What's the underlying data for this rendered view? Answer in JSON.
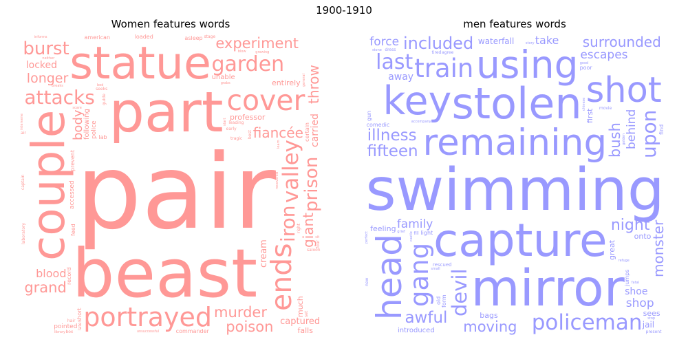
{
  "figure": {
    "suptitle": "1900-1910"
  },
  "chart_data": [
    {
      "type": "wordcloud",
      "title": "Women features words",
      "color": "#ff9896",
      "words": [
        {
          "text": "pair",
          "weight": 100
        },
        {
          "text": "part",
          "weight": 95
        },
        {
          "text": "beast",
          "weight": 60
        },
        {
          "text": "statue",
          "weight": 52
        },
        {
          "text": "couple",
          "weight": 38
        },
        {
          "text": "cover",
          "weight": 30
        },
        {
          "text": "portrayed",
          "weight": 28
        },
        {
          "text": "attacks",
          "weight": 27
        },
        {
          "text": "valley",
          "weight": 22
        },
        {
          "text": "ends",
          "weight": 22
        },
        {
          "text": "garden",
          "weight": 15
        },
        {
          "text": "experiment",
          "weight": 14
        },
        {
          "text": "iron",
          "weight": 14
        },
        {
          "text": "murder",
          "weight": 14
        },
        {
          "text": "poison",
          "weight": 14
        },
        {
          "text": "grand",
          "weight": 14
        },
        {
          "text": "prison",
          "weight": 13
        },
        {
          "text": "burst",
          "weight": 13
        },
        {
          "text": "giant",
          "weight": 13
        },
        {
          "text": "fiancée",
          "weight": 13
        },
        {
          "text": "throw",
          "weight": 13
        },
        {
          "text": "longer",
          "weight": 12
        },
        {
          "text": "locked",
          "weight": 12
        },
        {
          "text": "carried",
          "weight": 12
        },
        {
          "text": "following",
          "weight": 11
        },
        {
          "text": "captured",
          "weight": 11
        },
        {
          "text": "unable",
          "weight": 11
        },
        {
          "text": "cream",
          "weight": 11
        },
        {
          "text": "blood",
          "weight": 10
        },
        {
          "text": "police",
          "weight": 10
        },
        {
          "text": "accessed",
          "weight": 10
        },
        {
          "text": "pointed",
          "weight": 10
        },
        {
          "text": "falls",
          "weight": 9
        },
        {
          "text": "body",
          "weight": 8
        },
        {
          "text": "short",
          "weight": 8
        },
        {
          "text": "much",
          "weight": 8
        },
        {
          "text": "prevent",
          "weight": 8
        },
        {
          "text": "entirely",
          "weight": 8
        },
        {
          "text": "guide",
          "weight": 8
        },
        {
          "text": "seeks",
          "weight": 8
        },
        {
          "text": "leading",
          "weight": 8
        },
        {
          "text": "professor",
          "weight": 8
        },
        {
          "text": "american",
          "weight": 8
        },
        {
          "text": "captain",
          "weight": 8
        },
        {
          "text": "commander",
          "weight": 8
        },
        {
          "text": "asleep",
          "weight": 8
        },
        {
          "text": "feed",
          "weight": 8
        },
        {
          "text": "masked",
          "weight": 8
        },
        {
          "text": "loaded",
          "weight": 8
        },
        {
          "text": "late",
          "weight": 8
        },
        {
          "text": "early",
          "weight": 8
        },
        {
          "text": "growing",
          "weight": 8
        },
        {
          "text": "recovered",
          "weight": 8
        },
        {
          "text": "unsuccessful",
          "weight": 8
        },
        {
          "text": "four",
          "weight": 8
        },
        {
          "text": "certain",
          "weight": 8
        },
        {
          "text": "tragic",
          "weight": 8
        },
        {
          "text": "informs",
          "weight": 8
        },
        {
          "text": "grabs",
          "weight": 8
        },
        {
          "text": "breaks",
          "weight": 8
        },
        {
          "text": "student",
          "weight": 8
        },
        {
          "text": "vanished",
          "weight": 8
        },
        {
          "text": "convinced",
          "weight": 8
        },
        {
          "text": "intervene",
          "weight": 8
        },
        {
          "text": "coming",
          "weight": 8
        },
        {
          "text": "laboratory",
          "weight": 8
        },
        {
          "text": "desperate",
          "weight": 8
        },
        {
          "text": "difficult",
          "weight": 8
        },
        {
          "text": "higher",
          "weight": 8
        },
        {
          "text": "lab",
          "weight": 8
        },
        {
          "text": "box",
          "weight": 8
        },
        {
          "text": "christmas",
          "weight": 8
        },
        {
          "text": "record",
          "weight": 8
        },
        {
          "text": "thrown",
          "weight": 8
        },
        {
          "text": "stage",
          "weight": 8
        },
        {
          "text": "right",
          "weight": 8
        },
        {
          "text": "towards",
          "weight": 8
        },
        {
          "text": "bed",
          "weight": 8
        },
        {
          "text": "surrender",
          "weight": 8
        },
        {
          "text": "novel",
          "weight": 8
        },
        {
          "text": "hair",
          "weight": 8
        },
        {
          "text": "engaged",
          "weight": 8
        },
        {
          "text": "relieved",
          "weight": 8
        },
        {
          "text": "start",
          "weight": 8
        },
        {
          "text": "adopted",
          "weight": 8
        },
        {
          "text": "reconciled",
          "weight": 8
        },
        {
          "text": "time",
          "weight": 8
        },
        {
          "text": "scare",
          "weight": 8
        },
        {
          "text": "neither",
          "weight": 8
        },
        {
          "text": "include",
          "weight": 8
        },
        {
          "text": "freedom",
          "weight": 8
        },
        {
          "text": "strange",
          "weight": 8
        },
        {
          "text": "poverty",
          "weight": 8
        },
        {
          "text": "three",
          "weight": 8
        },
        {
          "text": "best",
          "weight": 8
        },
        {
          "text": "feature",
          "weight": 8
        },
        {
          "text": "blow",
          "weight": 8
        },
        {
          "text": "saloon",
          "weight": 8
        },
        {
          "text": "several",
          "weight": 8
        },
        {
          "text": "silent",
          "weight": 8
        },
        {
          "text": "general",
          "weight": 8
        },
        {
          "text": "afterwards",
          "weight": 8
        },
        {
          "text": "air",
          "weight": 8
        },
        {
          "text": "library",
          "weight": 8
        },
        {
          "text": "jungle",
          "weight": 8
        },
        {
          "text": "sit",
          "weight": 8
        },
        {
          "text": "set",
          "weight": 8
        },
        {
          "text": "tells",
          "weight": 8
        },
        {
          "text": "learn",
          "weight": 8
        },
        {
          "text": "nearby",
          "weight": 8
        },
        {
          "text": "jealousy",
          "weight": 8
        },
        {
          "text": "thug",
          "weight": 8
        }
      ]
    },
    {
      "type": "wordcloud",
      "title": "men features words",
      "color": "#9999ff",
      "words": [
        {
          "text": "swimming",
          "weight": 100
        },
        {
          "text": "remaining",
          "weight": 80
        },
        {
          "text": "capture",
          "weight": 75
        },
        {
          "text": "stolen",
          "weight": 70
        },
        {
          "text": "mirror",
          "weight": 60
        },
        {
          "text": "using",
          "weight": 60
        },
        {
          "text": "shot",
          "weight": 55
        },
        {
          "text": "gang",
          "weight": 52
        },
        {
          "text": "key",
          "weight": 45
        },
        {
          "text": "devil",
          "weight": 40
        },
        {
          "text": "head",
          "weight": 38
        },
        {
          "text": "policeman",
          "weight": 30
        },
        {
          "text": "train",
          "weight": 27
        },
        {
          "text": "surrounded",
          "weight": 25
        },
        {
          "text": "fifteen",
          "weight": 22
        },
        {
          "text": "night",
          "weight": 20
        },
        {
          "text": "moving",
          "weight": 19
        },
        {
          "text": "bush",
          "weight": 19
        },
        {
          "text": "included",
          "weight": 16
        },
        {
          "text": "awful",
          "weight": 15
        },
        {
          "text": "family",
          "weight": 15
        },
        {
          "text": "behind",
          "weight": 15
        },
        {
          "text": "illness",
          "weight": 15
        },
        {
          "text": "escapes",
          "weight": 15
        },
        {
          "text": "last",
          "weight": 15
        },
        {
          "text": "shop",
          "weight": 15
        },
        {
          "text": "force",
          "weight": 15
        },
        {
          "text": "waterfall",
          "weight": 14
        },
        {
          "text": "upon",
          "weight": 14
        },
        {
          "text": "take",
          "weight": 14
        },
        {
          "text": "monster",
          "weight": 13
        },
        {
          "text": "feeling",
          "weight": 13
        },
        {
          "text": "bags",
          "weight": 13
        },
        {
          "text": "shoe",
          "weight": 12
        },
        {
          "text": "first",
          "weight": 12
        },
        {
          "text": "light",
          "weight": 12
        },
        {
          "text": "away",
          "weight": 12
        },
        {
          "text": "great",
          "weight": 12
        },
        {
          "text": "jumps",
          "weight": 12
        },
        {
          "text": "introduced",
          "weight": 11
        },
        {
          "text": "accompany",
          "weight": 10
        },
        {
          "text": "rescued",
          "weight": 10
        },
        {
          "text": "jail",
          "weight": 10
        },
        {
          "text": "chinese",
          "weight": 10
        },
        {
          "text": "sweetheart",
          "weight": 9
        },
        {
          "text": "comedic",
          "weight": 9
        },
        {
          "text": "poor",
          "weight": 9
        },
        {
          "text": "form",
          "weight": 9
        },
        {
          "text": "perfect",
          "weight": 9
        },
        {
          "text": "old",
          "weight": 9
        },
        {
          "text": "sees",
          "weight": 9
        },
        {
          "text": "find",
          "weight": 9
        },
        {
          "text": "present",
          "weight": 9
        },
        {
          "text": "movie",
          "weight": 9
        },
        {
          "text": "fill",
          "weight": 9
        },
        {
          "text": "golden",
          "weight": 8
        },
        {
          "text": "onto",
          "weight": 8
        },
        {
          "text": "good",
          "weight": 8
        },
        {
          "text": "stone",
          "weight": 8
        },
        {
          "text": "new",
          "weight": 8
        },
        {
          "text": "added",
          "weight": 8
        },
        {
          "text": "tired",
          "weight": 8
        },
        {
          "text": "refuge",
          "weight": 8
        },
        {
          "text": "window",
          "weight": 8
        },
        {
          "text": "story",
          "weight": 8
        },
        {
          "text": "dead",
          "weight": 8
        },
        {
          "text": "barber",
          "weight": 8
        },
        {
          "text": "truth",
          "weight": 8
        },
        {
          "text": "street",
          "weight": 8
        },
        {
          "text": "agree",
          "weight": 8
        },
        {
          "text": "dress",
          "weight": 8
        },
        {
          "text": "stopping",
          "weight": 8
        },
        {
          "text": "castle",
          "weight": 8
        },
        {
          "text": "dance",
          "weight": 8
        },
        {
          "text": "fatal",
          "weight": 8
        },
        {
          "text": "badly",
          "weight": 8
        },
        {
          "text": "knife",
          "weight": 8
        },
        {
          "text": "gun",
          "weight": 8
        },
        {
          "text": "small",
          "weight": 8
        },
        {
          "text": "turning",
          "weight": 8
        },
        {
          "text": "main",
          "weight": 8
        },
        {
          "text": "destroy",
          "weight": 8
        },
        {
          "text": "grief",
          "weight": 8
        },
        {
          "text": "dog",
          "weight": 8
        },
        {
          "text": "posse",
          "weight": 8
        },
        {
          "text": "rescues",
          "weight": 8
        },
        {
          "text": "shocked",
          "weight": 8
        },
        {
          "text": "midnight",
          "weight": 8
        },
        {
          "text": "scale",
          "weight": 8
        },
        {
          "text": "crime",
          "weight": 8
        },
        {
          "text": "possible",
          "weight": 8
        },
        {
          "text": "large",
          "weight": 8
        },
        {
          "text": "known",
          "weight": 8
        },
        {
          "text": "stop",
          "weight": 8
        },
        {
          "text": "want",
          "weight": 8
        },
        {
          "text": "hiding",
          "weight": 8
        },
        {
          "text": "effeminate",
          "weight": 8
        },
        {
          "text": "appalled",
          "weight": 8
        },
        {
          "text": "full",
          "weight": 8
        }
      ]
    }
  ]
}
